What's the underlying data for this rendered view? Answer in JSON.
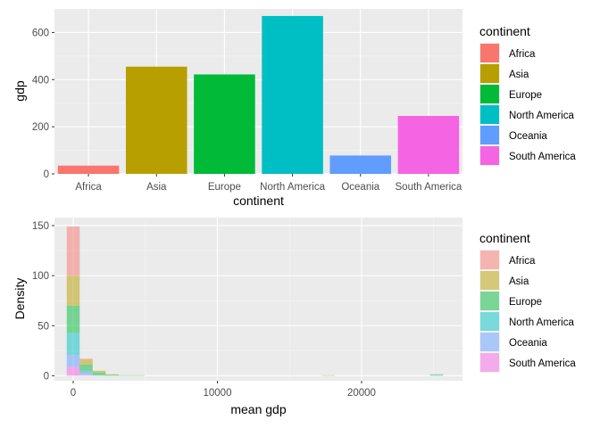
{
  "chart_data": [
    {
      "type": "bar",
      "xlabel": "continent",
      "ylabel": "gdp",
      "ylim": [
        0,
        700
      ],
      "y_ticks": [
        0,
        200,
        400,
        600
      ],
      "categories": [
        "Africa",
        "Asia",
        "Europe",
        "North America",
        "Oceania",
        "South America"
      ],
      "values": [
        35,
        455,
        422,
        670,
        78,
        246
      ],
      "colors": [
        "#F8766D",
        "#B79F00",
        "#00BA38",
        "#00BFC4",
        "#619CFF",
        "#F564E3"
      ],
      "grid": true,
      "legend": {
        "title": "continent",
        "placement": "right",
        "entries": [
          "Africa",
          "Asia",
          "Europe",
          "North America",
          "Oceania",
          "South America"
        ]
      }
    },
    {
      "type": "histogram",
      "xlabel": "mean gdp",
      "ylabel": "Density",
      "xlim": [
        -1300,
        27000
      ],
      "ylim": [
        -5,
        158
      ],
      "x_ticks": [
        0,
        10000,
        20000
      ],
      "x_tick_labels": [
        "0",
        "10000",
        "20000"
      ],
      "y_ticks": [
        0,
        50,
        100,
        150
      ],
      "bin_width": 900,
      "stacked": true,
      "opacity": 0.5,
      "grid": true,
      "series": [
        {
          "name": "Africa",
          "color": "#F8766D",
          "bins": [
            {
              "x": 0,
              "y": 49
            },
            {
              "x": 900,
              "y": 1
            }
          ]
        },
        {
          "name": "Asia",
          "color": "#B79F00",
          "bins": [
            {
              "x": 0,
              "y": 30
            },
            {
              "x": 900,
              "y": 5
            },
            {
              "x": 1800,
              "y": 2
            },
            {
              "x": 2700,
              "y": 0.5
            },
            {
              "x": 17700,
              "y": 0.5
            },
            {
              "x": 25200,
              "y": 0.5
            }
          ]
        },
        {
          "name": "Europe",
          "color": "#00BA38",
          "bins": [
            {
              "x": 0,
              "y": 27
            },
            {
              "x": 900,
              "y": 6
            },
            {
              "x": 1800,
              "y": 2
            },
            {
              "x": 2700,
              "y": 1
            },
            {
              "x": 3600,
              "y": 0.5
            },
            {
              "x": 4500,
              "y": 0.5
            }
          ]
        },
        {
          "name": "North America",
          "color": "#00BFC4",
          "bins": [
            {
              "x": 0,
              "y": 22
            },
            {
              "x": 900,
              "y": 2
            },
            {
              "x": 1800,
              "y": 1
            },
            {
              "x": 25200,
              "y": 1
            }
          ]
        },
        {
          "name": "Oceania",
          "color": "#619CFF",
          "bins": [
            {
              "x": 0,
              "y": 12
            },
            {
              "x": 900,
              "y": 2
            }
          ]
        },
        {
          "name": "South America",
          "color": "#F564E3",
          "bins": [
            {
              "x": 0,
              "y": 9
            },
            {
              "x": 900,
              "y": 1
            }
          ]
        }
      ],
      "legend": {
        "title": "continent",
        "placement": "right",
        "entries": [
          "Africa",
          "Asia",
          "Europe",
          "North America",
          "Oceania",
          "South America"
        ]
      }
    }
  ]
}
